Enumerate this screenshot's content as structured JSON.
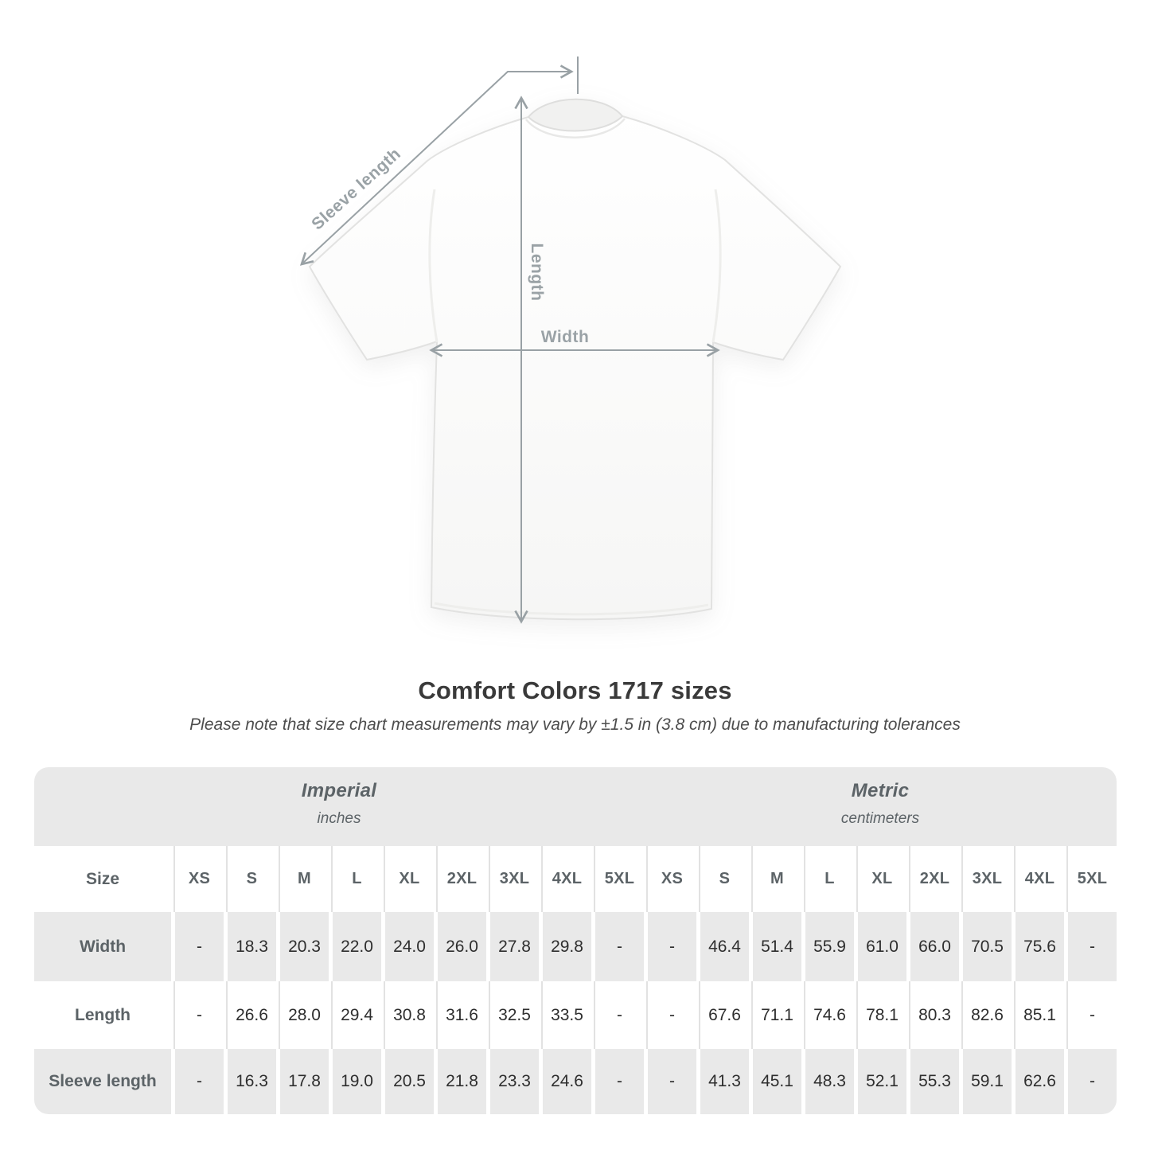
{
  "chart_data": {
    "type": "table",
    "title": "Comfort Colors 1717 sizes",
    "note": "Please note that size chart measurements may vary by ±1.5 in (3.8 cm) due to manufacturing tolerances",
    "unit_groups": [
      {
        "title": "Imperial",
        "subtitle": "inches"
      },
      {
        "title": "Metric",
        "subtitle": "centimeters"
      }
    ],
    "corner_header": "Size",
    "columns": [
      "XS",
      "S",
      "M",
      "L",
      "XL",
      "2XL",
      "3XL",
      "4XL",
      "5XL",
      "XS",
      "S",
      "M",
      "L",
      "XL",
      "2XL",
      "3XL",
      "4XL",
      "5XL"
    ],
    "rows": [
      {
        "label": "Width",
        "values": [
          "-",
          "18.3",
          "20.3",
          "22.0",
          "24.0",
          "26.0",
          "27.8",
          "29.8",
          "-",
          "-",
          "46.4",
          "51.4",
          "55.9",
          "61.0",
          "66.0",
          "70.5",
          "75.6",
          "-"
        ]
      },
      {
        "label": "Length",
        "values": [
          "-",
          "26.6",
          "28.0",
          "29.4",
          "30.8",
          "31.6",
          "32.5",
          "33.5",
          "-",
          "-",
          "67.6",
          "71.1",
          "74.6",
          "78.1",
          "80.3",
          "82.6",
          "85.1",
          "-"
        ]
      },
      {
        "label": "Sleeve length",
        "values": [
          "-",
          "16.3",
          "17.8",
          "19.0",
          "20.5",
          "21.8",
          "23.3",
          "24.6",
          "-",
          "-",
          "41.3",
          "45.1",
          "48.3",
          "52.1",
          "55.3",
          "59.1",
          "62.6",
          "-"
        ]
      }
    ]
  },
  "diagram": {
    "labels": {
      "sleeve_length": "Sleeve length",
      "length": "Length",
      "width": "Width"
    }
  },
  "colors": {
    "band_gray": "#e9e9e9",
    "annotation_gray": "#99a1a5",
    "header_text": "#5c6367",
    "value_text": "#2e2e2e"
  }
}
